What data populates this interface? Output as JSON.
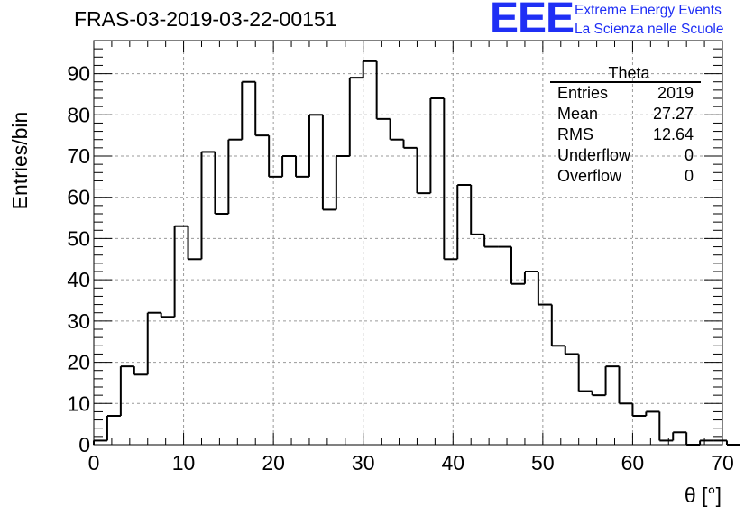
{
  "header": {
    "run_title": "FRAS-03-2019-03-22-00151",
    "logo": {
      "mark": "EEE",
      "line1": "Extreme Energy Events",
      "line2": "La Scienza nelle Scuole",
      "color": "#1f2ff5"
    }
  },
  "stats_box": {
    "title": "Theta",
    "rows": [
      {
        "label": "Entries",
        "value": "2019"
      },
      {
        "label": "Mean",
        "value": "27.27"
      },
      {
        "label": "RMS",
        "value": "12.64"
      },
      {
        "label": "Underflow",
        "value": "0"
      },
      {
        "label": "Overflow",
        "value": "0"
      }
    ]
  },
  "chart_data": {
    "type": "histogram",
    "xlabel": "θ [°]",
    "ylabel": "Entries/bin",
    "xlim": [
      0,
      70
    ],
    "ylim": [
      0,
      98
    ],
    "x_ticks": [
      0,
      10,
      20,
      30,
      40,
      50,
      60,
      70
    ],
    "y_ticks": [
      0,
      10,
      20,
      30,
      40,
      50,
      60,
      70,
      80,
      90
    ],
    "grid": true,
    "bin_width": 1.5,
    "bin_start": 0,
    "counts": [
      1,
      7,
      19,
      17,
      32,
      31,
      53,
      45,
      71,
      56,
      74,
      88,
      75,
      65,
      70,
      65,
      80,
      57,
      70,
      89,
      93,
      79,
      74,
      72,
      61,
      84,
      45,
      63,
      51,
      48,
      48,
      39,
      42,
      34,
      24,
      22,
      13,
      12,
      19,
      10,
      7,
      8,
      1,
      3,
      0,
      1,
      1,
      0
    ]
  }
}
